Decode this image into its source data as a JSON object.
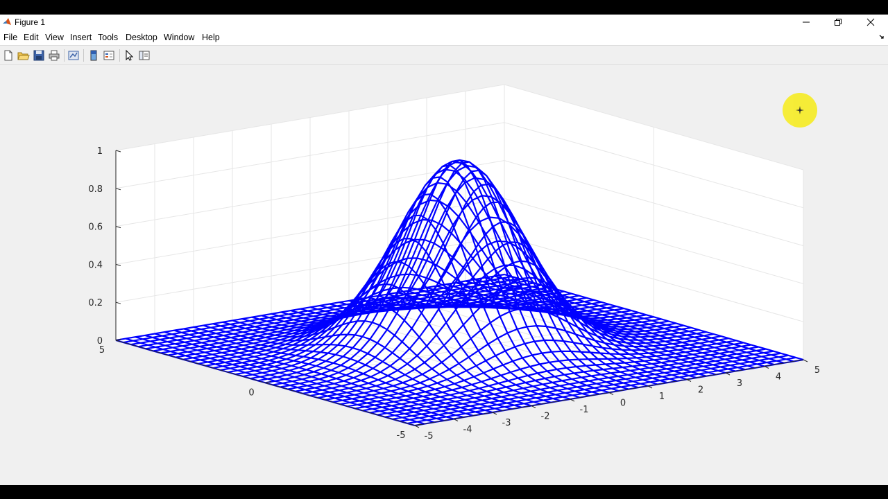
{
  "window": {
    "title": "Figure 1"
  },
  "menu": [
    "File",
    "Edit",
    "View",
    "Insert",
    "Tools",
    "Desktop",
    "Window",
    "Help"
  ],
  "toolbar": [
    "new-figure",
    "open-file",
    "save",
    "print",
    "link-plot",
    "colorbar",
    "legend",
    "edit-plot",
    "property-inspector"
  ],
  "colors": {
    "mesh": "#0000ff",
    "grid": "#e6e6e6",
    "axes": "#262626",
    "cursor_marker": "#f6ec2e"
  },
  "chart_data": {
    "type": "mesh",
    "function": "exp(-(x^2+y^2)/(2*sigma^2))",
    "xlim": [
      -5,
      5
    ],
    "ylim": [
      -5,
      5
    ],
    "zlim": [
      0,
      1
    ],
    "peak": {
      "x": 0,
      "y": 0,
      "z": 1
    },
    "x_ticks": [
      "-5",
      "-4",
      "-3",
      "-2",
      "-1",
      "0",
      "1",
      "2",
      "3",
      "4",
      "5"
    ],
    "y_ticks": [
      "-5",
      "0",
      "5"
    ],
    "z_ticks": [
      "0",
      "0.2",
      "0.4",
      "0.6",
      "0.8",
      "1"
    ],
    "grid": true,
    "title": "",
    "xlabel": "",
    "ylabel": "",
    "zlabel": ""
  }
}
